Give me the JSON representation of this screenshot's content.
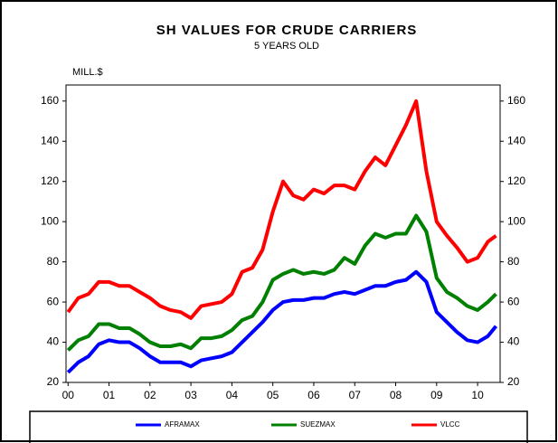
{
  "chart_data": {
    "type": "line",
    "title": "SH VALUES FOR CRUDE CARRIERS",
    "subtitle": "5 YEARS OLD",
    "y_label": "MILL.$",
    "x": [
      2000,
      2000.25,
      2000.5,
      2000.75,
      2001,
      2001.25,
      2001.5,
      2001.75,
      2002,
      2002.25,
      2002.5,
      2002.75,
      2003,
      2003.25,
      2003.5,
      2003.75,
      2004,
      2004.25,
      2004.5,
      2004.75,
      2005,
      2005.25,
      2005.5,
      2005.75,
      2006,
      2006.25,
      2006.5,
      2006.75,
      2007,
      2007.25,
      2007.5,
      2007.75,
      2008,
      2008.25,
      2008.5,
      2008.75,
      2009,
      2009.25,
      2009.5,
      2009.75,
      2010,
      2010.25,
      2010.45
    ],
    "series": [
      {
        "name": "AFRAMAX",
        "color": "#0000ff",
        "values": [
          25,
          30,
          33,
          39,
          41,
          40,
          40,
          37,
          33,
          30,
          30,
          30,
          28,
          31,
          32,
          33,
          35,
          40,
          45,
          50,
          56,
          60,
          61,
          61,
          62,
          62,
          64,
          65,
          64,
          66,
          68,
          68,
          70,
          71,
          75,
          70,
          55,
          50,
          45,
          41,
          40,
          43,
          48
        ]
      },
      {
        "name": "SUEZMAX",
        "color": "#008000",
        "values": [
          36,
          41,
          43,
          49,
          49,
          47,
          47,
          44,
          40,
          38,
          38,
          39,
          37,
          42,
          42,
          43,
          46,
          51,
          53,
          60,
          71,
          74,
          76,
          74,
          75,
          74,
          76,
          82,
          79,
          88,
          94,
          92,
          94,
          94,
          103,
          95,
          72,
          65,
          62,
          58,
          56,
          60,
          64
        ]
      },
      {
        "name": "VLCC",
        "color": "#ff0000",
        "values": [
          55,
          62,
          64,
          70,
          70,
          68,
          68,
          65,
          62,
          58,
          56,
          55,
          52,
          58,
          59,
          60,
          64,
          75,
          77,
          86,
          105,
          120,
          113,
          111,
          116,
          114,
          118,
          118,
          116,
          125,
          132,
          128,
          138,
          148,
          160,
          125,
          100,
          93,
          87,
          80,
          82,
          90,
          93
        ]
      }
    ],
    "xlim": [
      1999.95,
      2010.55
    ],
    "xticks": [
      {
        "value": 2000,
        "label": "00"
      },
      {
        "value": 2001,
        "label": "01"
      },
      {
        "value": 2002,
        "label": "02"
      },
      {
        "value": 2003,
        "label": "03"
      },
      {
        "value": 2004,
        "label": "04"
      },
      {
        "value": 2005,
        "label": "05"
      },
      {
        "value": 2006,
        "label": "06"
      },
      {
        "value": 2007,
        "label": "07"
      },
      {
        "value": 2008,
        "label": "08"
      },
      {
        "value": 2009,
        "label": "09"
      },
      {
        "value": 2010,
        "label": "10"
      }
    ],
    "ylim": [
      20,
      168
    ],
    "yticks": [
      20,
      40,
      60,
      80,
      100,
      120,
      140,
      160
    ],
    "grid": false,
    "legend": "bottom"
  }
}
